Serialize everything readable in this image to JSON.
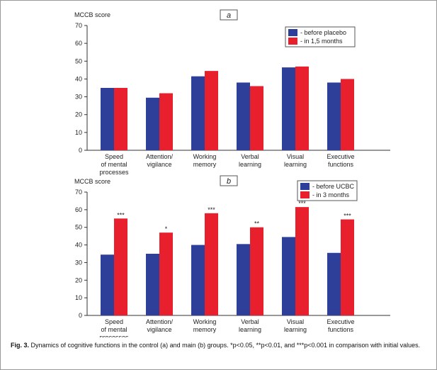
{
  "chart_data": [
    {
      "type": "bar",
      "panel_label": "a",
      "y_label": "MCCB score",
      "categories": [
        "Speed\nof mental\nprocesses",
        "Attention/\nvigilance",
        "Working\nmemory",
        "Verbal\nlearning",
        "Visual\nlearning",
        "Executive\nfunctions"
      ],
      "series": [
        {
          "name": "- before placebo",
          "color": "#2e3f9a",
          "values": [
            35,
            29.5,
            41.5,
            38,
            46.5,
            38
          ]
        },
        {
          "name": "- in 1,5 months",
          "color": "#e8202e",
          "values": [
            35,
            32,
            44.5,
            36,
            47,
            40
          ]
        }
      ],
      "ylim": [
        0,
        70
      ],
      "yticks": [
        0,
        10,
        20,
        30,
        40,
        50,
        60,
        70
      ],
      "legend": "top-right"
    },
    {
      "type": "bar",
      "panel_label": "b",
      "y_label": "MCCB score",
      "categories": [
        "Speed\nof mental\nprocesses",
        "Attention/\nvigilance",
        "Working\nmemory",
        "Verbal\nlearning",
        "Visual\nlearning",
        "Executive\nfunctions"
      ],
      "series": [
        {
          "name": "- before UCBC",
          "color": "#2e3f9a",
          "values": [
            34.5,
            35,
            40,
            40.5,
            44.5,
            35.5
          ]
        },
        {
          "name": "- in 3 months",
          "color": "#e8202e",
          "values": [
            55,
            47,
            58,
            50,
            61.5,
            54.5
          ]
        }
      ],
      "annotations": [
        "***",
        "*",
        "***",
        "**",
        "***",
        "***"
      ],
      "ylim": [
        0,
        70
      ],
      "yticks": [
        0,
        10,
        20,
        30,
        40,
        50,
        60,
        70
      ],
      "legend": "top-right"
    }
  ],
  "caption": {
    "label": "Fig. 3.",
    "text": "Dynamics of cognitive functions in the control (a) and main (b) groups. *p<0.05, **p<0.01, and ***p<0.001 in comparison with initial values."
  }
}
